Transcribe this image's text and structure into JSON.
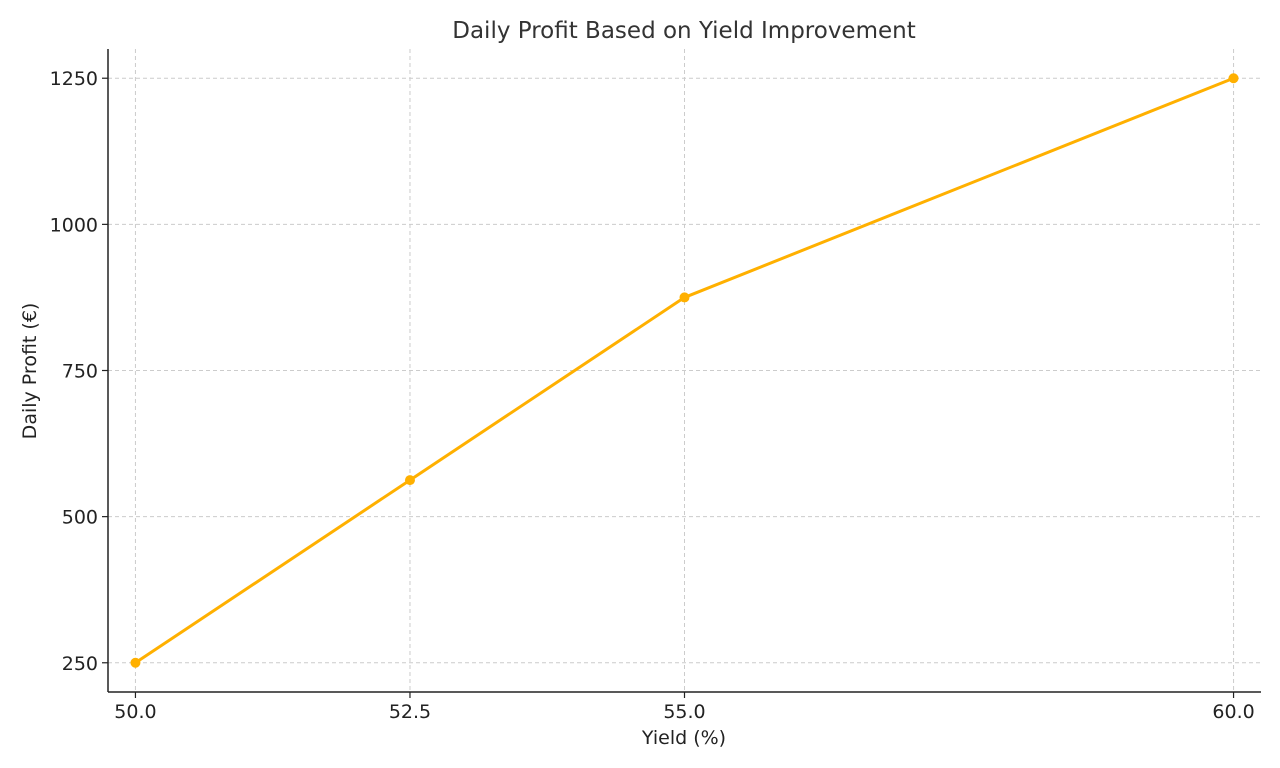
{
  "chart_data": {
    "type": "line",
    "title": "Daily Profit Based on Yield Improvement",
    "xlabel": "Yield (%)",
    "ylabel": "Daily Profit (€)",
    "x": [
      50.0,
      52.5,
      55.0,
      60.0
    ],
    "x_tick_labels": [
      "50.0",
      "52.5",
      "55.0",
      "60.0"
    ],
    "series": [
      {
        "values": [
          250,
          562.5,
          875,
          1250
        ],
        "color": "#FFB000",
        "marker": "circle"
      }
    ],
    "xlim": [
      49.75,
      60.25
    ],
    "ylim": [
      200,
      1300
    ],
    "y_ticks": [
      250,
      500,
      750,
      1000,
      1250
    ],
    "y_tick_labels": [
      "250",
      "500",
      "750",
      "1000",
      "1250"
    ],
    "grid": true,
    "legend": "none"
  }
}
